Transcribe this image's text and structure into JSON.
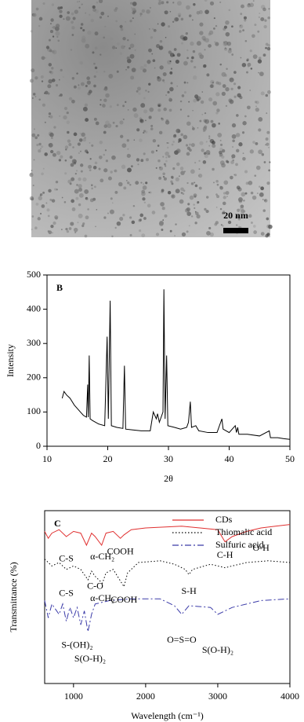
{
  "image": {
    "scale_bar": "20 nm"
  },
  "chart_data": [
    {
      "type": "line",
      "title": "B",
      "x_label": "2θ",
      "y_label": "Intensity",
      "xlim": [
        10,
        50
      ],
      "ylim": [
        0,
        500
      ],
      "xticks": [
        10,
        20,
        30,
        40,
        50
      ],
      "yticks": [
        0,
        100,
        200,
        300,
        400,
        500
      ],
      "series": [
        {
          "color": "#000000",
          "dash": "solid",
          "x": [
            12.5,
            12.8,
            13.2,
            13.8,
            14.5,
            15,
            15.5,
            16,
            16.5,
            16.7,
            16.8,
            16.95,
            17.1,
            17.5,
            18.5,
            19.5,
            19.9,
            20.1,
            20.4,
            20.6,
            21.5,
            22.5,
            22.75,
            22.95,
            24,
            25.5,
            27,
            27.5,
            28,
            28.2,
            28.5,
            29.1,
            29.25,
            29.45,
            29.7,
            29.9,
            31,
            32,
            33,
            33.3,
            33.6,
            33.8,
            34.5,
            35,
            36.5,
            38,
            38.8,
            39,
            40,
            41,
            41.2,
            41.4,
            41.6,
            43,
            45,
            46.6,
            46.8,
            48,
            49,
            50
          ],
          "values": [
            140,
            160,
            150,
            140,
            120,
            110,
            100,
            90,
            85,
            180,
            85,
            265,
            80,
            75,
            65,
            60,
            320,
            80,
            425,
            60,
            55,
            52,
            235,
            50,
            48,
            45,
            45,
            100,
            80,
            95,
            70,
            100,
            458,
            80,
            265,
            60,
            55,
            50,
            55,
            70,
            130,
            55,
            60,
            45,
            40,
            40,
            80,
            50,
            40,
            60,
            40,
            55,
            35,
            35,
            30,
            45,
            25,
            25,
            22,
            20
          ]
        }
      ]
    },
    {
      "type": "line",
      "title": "C",
      "x_label": "Wavelength (cm⁻¹)",
      "y_label": "Transmittance (%)",
      "xlim": [
        600,
        4000
      ],
      "ylim": [
        0,
        100
      ],
      "xticks": [
        1000,
        2000,
        3000,
        4000
      ],
      "legend": "top-right",
      "series": [
        {
          "name": "CDs",
          "color": "#e03030",
          "dash": "solid",
          "x": [
            600,
            650,
            700,
            800,
            900,
            1000,
            1100,
            1180,
            1250,
            1300,
            1390,
            1450,
            1550,
            1650,
            1700,
            1800,
            2000,
            2500,
            3000,
            3100,
            3200,
            3400,
            3600,
            3800,
            4000
          ],
          "values": [
            88,
            84,
            87,
            89,
            85,
            88,
            87,
            80,
            87,
            85,
            80,
            87,
            88,
            84,
            86,
            89,
            90,
            91,
            89,
            82,
            85,
            88,
            90,
            91,
            92
          ]
        },
        {
          "name": "Thiomalic acid",
          "color": "#000000",
          "dash": "dotted",
          "x": [
            600,
            700,
            800,
            900,
            1000,
            1100,
            1200,
            1250,
            1300,
            1400,
            1450,
            1550,
            1700,
            1750,
            1900,
            2200,
            2400,
            2550,
            2600,
            2650,
            2900,
            3100,
            3400,
            3700,
            4000
          ],
          "values": [
            72,
            68,
            70,
            66,
            68,
            66,
            60,
            65,
            62,
            58,
            64,
            66,
            56,
            64,
            70,
            71,
            69,
            66,
            63,
            66,
            69,
            67,
            70,
            71,
            70
          ]
        },
        {
          "name": "Sulfuric acid",
          "color": "#3a3aa8",
          "dash": "dashdot",
          "x": [
            600,
            650,
            700,
            800,
            850,
            900,
            950,
            1000,
            1050,
            1100,
            1150,
            1200,
            1250,
            1300,
            1500,
            1800,
            2200,
            2400,
            2500,
            2600,
            2900,
            3000,
            3200,
            3600,
            4000
          ],
          "values": [
            48,
            38,
            46,
            40,
            46,
            36,
            44,
            38,
            44,
            34,
            42,
            30,
            40,
            46,
            48,
            49,
            49,
            45,
            40,
            45,
            44,
            40,
            44,
            48,
            49
          ]
        }
      ],
      "annotations": [
        {
          "text": "C-S",
          "x": 900,
          "y": 72
        },
        {
          "text": "α-CH₂",
          "x": 1400,
          "y": 73
        },
        {
          "text": "COOH",
          "x": 1650,
          "y": 76
        },
        {
          "text": "C-H",
          "x": 3100,
          "y": 74
        },
        {
          "text": "O-H",
          "x": 3600,
          "y": 78
        },
        {
          "text": "C-S",
          "x": 900,
          "y": 52
        },
        {
          "text": "C-O",
          "x": 1300,
          "y": 56
        },
        {
          "text": "α-CH₂",
          "x": 1400,
          "y": 49
        },
        {
          "text": "COOH",
          "x": 1700,
          "y": 48
        },
        {
          "text": "S-H",
          "x": 2600,
          "y": 53
        },
        {
          "text": "S-(OH)₂",
          "x": 1050,
          "y": 22
        },
        {
          "text": "S(O-H)₂",
          "x": 1230,
          "y": 14
        },
        {
          "text": "O=S=O",
          "x": 2500,
          "y": 25
        },
        {
          "text": "S(O-H)₂",
          "x": 3000,
          "y": 19
        }
      ]
    }
  ]
}
